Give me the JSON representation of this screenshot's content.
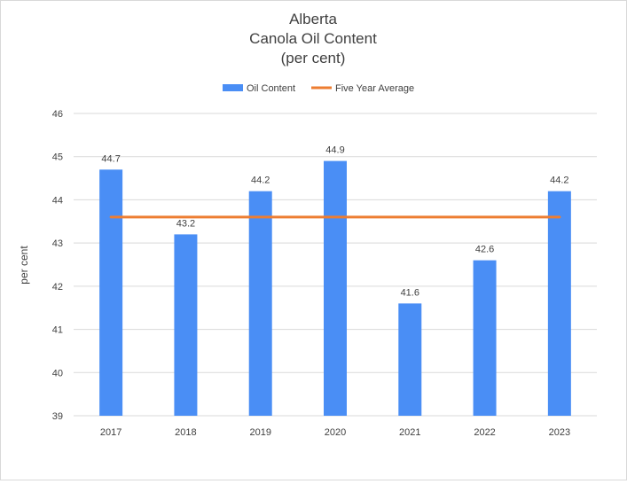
{
  "chart_data": {
    "type": "bar",
    "title": [
      "Alberta",
      "Canola Oil Content",
      "(per cent)"
    ],
    "xlabel": "",
    "ylabel": "per cent",
    "categories": [
      "2017",
      "2018",
      "2019",
      "2020",
      "2021",
      "2022",
      "2023"
    ],
    "series": [
      {
        "name": "Oil Content",
        "type": "bar",
        "color": "#4a8ef5",
        "values": [
          44.7,
          43.2,
          44.2,
          44.9,
          41.6,
          42.6,
          44.2
        ],
        "data_labels": [
          "44.7",
          "43.2",
          "44.2",
          "44.9",
          "41.6",
          "42.6",
          "44.2"
        ]
      },
      {
        "name": "Five Year Average",
        "type": "line",
        "color": "#ed7d31",
        "values": [
          43.6,
          43.6,
          43.6,
          43.6,
          43.6,
          43.6,
          43.6
        ]
      }
    ],
    "ylim": [
      39,
      46
    ],
    "yticks": [
      "39",
      "40",
      "41",
      "42",
      "43",
      "44",
      "45",
      "46"
    ],
    "grid": true,
    "legend_position": "top"
  }
}
